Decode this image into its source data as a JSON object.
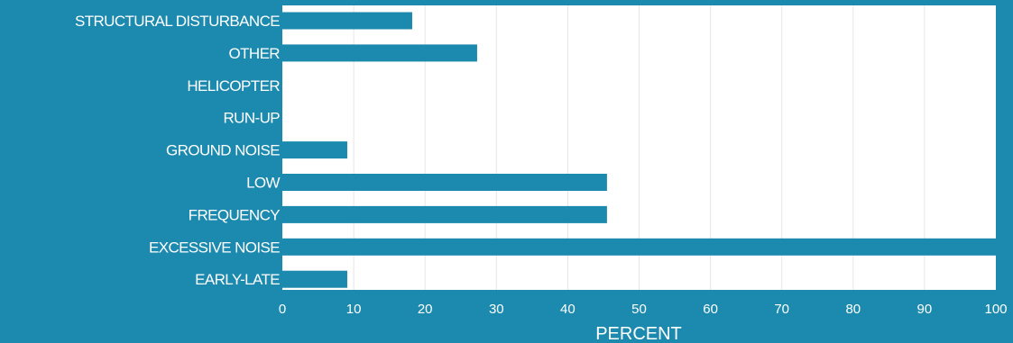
{
  "colors": {
    "background": "#1c8aae",
    "plot_area": "#ffffff",
    "bar": "#1c8aae",
    "gridline": "#e6e6e6",
    "text": "#ffffff"
  },
  "chart_data": {
    "type": "bar",
    "orientation": "horizontal",
    "title": "",
    "xlabel": "PERCENT",
    "ylabel": "",
    "xlim": [
      0,
      100
    ],
    "x_ticks": [
      0,
      10,
      20,
      30,
      40,
      50,
      60,
      70,
      80,
      90,
      100
    ],
    "grid": true,
    "legend": "none",
    "categories": [
      "STRUCTURAL DISTURBANCE",
      "OTHER",
      "HELICOPTER",
      "RUN-UP",
      "GROUND NOISE",
      "LOW",
      "FREQUENCY",
      "EXCESSIVE NOISE",
      "EARLY-LATE"
    ],
    "values": [
      18.2,
      27.3,
      0,
      0,
      9.1,
      45.5,
      45.5,
      100,
      9.1
    ]
  }
}
